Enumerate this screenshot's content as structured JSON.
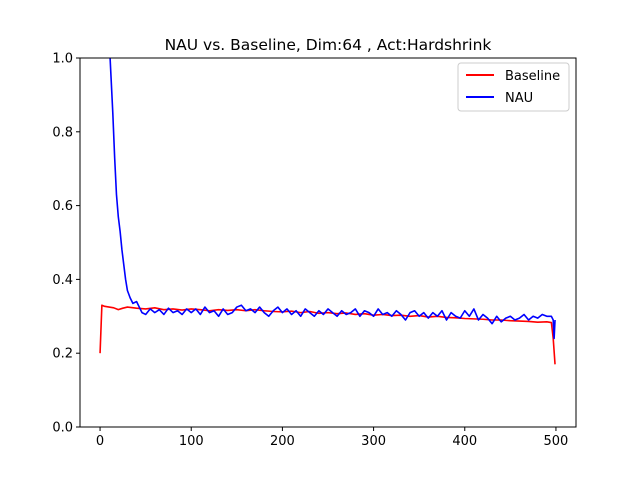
{
  "chart_data": {
    "type": "line",
    "title": "NAU vs. Baseline, Dim:64 , Act:Hardshrink",
    "xlabel": "",
    "ylabel": "",
    "xlim": [
      -22,
      522
    ],
    "ylim": [
      0,
      1.0
    ],
    "xticks": [
      0,
      100,
      200,
      300,
      400,
      500
    ],
    "yticks": [
      0.0,
      0.2,
      0.4,
      0.6,
      0.8,
      1.0
    ],
    "xtick_labels": [
      "0",
      "100",
      "200",
      "300",
      "400",
      "500"
    ],
    "ytick_labels": [
      "0.0",
      "0.2",
      "0.4",
      "0.6",
      "0.8",
      "1.0"
    ],
    "grid": false,
    "legend_position": "top-right",
    "series": [
      {
        "name": "Baseline",
        "color": "#ff0000",
        "x": [
          0,
          2,
          5,
          10,
          15,
          20,
          25,
          30,
          40,
          50,
          60,
          70,
          80,
          90,
          100,
          110,
          120,
          130,
          140,
          150,
          160,
          170,
          180,
          190,
          200,
          210,
          220,
          230,
          240,
          250,
          260,
          270,
          280,
          290,
          300,
          310,
          320,
          330,
          340,
          350,
          360,
          370,
          380,
          390,
          400,
          410,
          420,
          430,
          440,
          450,
          460,
          470,
          480,
          490,
          495,
          497,
          499
        ],
        "values": [
          0.2,
          0.33,
          0.327,
          0.325,
          0.323,
          0.318,
          0.322,
          0.325,
          0.322,
          0.32,
          0.323,
          0.318,
          0.32,
          0.317,
          0.32,
          0.318,
          0.315,
          0.318,
          0.316,
          0.318,
          0.315,
          0.318,
          0.315,
          0.313,
          0.312,
          0.314,
          0.31,
          0.313,
          0.308,
          0.31,
          0.307,
          0.309,
          0.305,
          0.307,
          0.303,
          0.305,
          0.302,
          0.303,
          0.3,
          0.302,
          0.298,
          0.3,
          0.297,
          0.296,
          0.294,
          0.293,
          0.292,
          0.29,
          0.29,
          0.288,
          0.287,
          0.286,
          0.284,
          0.285,
          0.283,
          0.24,
          0.17
        ]
      },
      {
        "name": "NAU",
        "color": "#0000ff",
        "x": [
          11,
          12,
          14,
          16,
          18,
          20,
          22,
          24,
          26,
          28,
          30,
          33,
          36,
          40,
          43,
          46,
          50,
          55,
          60,
          65,
          70,
          75,
          80,
          85,
          90,
          95,
          100,
          105,
          110,
          115,
          120,
          125,
          130,
          135,
          140,
          145,
          150,
          155,
          160,
          165,
          170,
          175,
          180,
          185,
          190,
          195,
          200,
          205,
          210,
          215,
          220,
          225,
          230,
          235,
          240,
          245,
          250,
          255,
          260,
          265,
          270,
          275,
          280,
          285,
          290,
          295,
          300,
          305,
          310,
          315,
          320,
          325,
          330,
          335,
          340,
          345,
          350,
          355,
          360,
          365,
          370,
          375,
          380,
          385,
          390,
          395,
          400,
          405,
          410,
          415,
          420,
          425,
          430,
          435,
          440,
          445,
          450,
          455,
          460,
          465,
          470,
          475,
          480,
          485,
          490,
          495,
          497,
          498,
          499
        ],
        "values": [
          1.0,
          0.95,
          0.85,
          0.73,
          0.63,
          0.57,
          0.53,
          0.48,
          0.44,
          0.4,
          0.37,
          0.35,
          0.335,
          0.34,
          0.325,
          0.31,
          0.305,
          0.32,
          0.31,
          0.318,
          0.305,
          0.322,
          0.31,
          0.315,
          0.305,
          0.32,
          0.31,
          0.32,
          0.305,
          0.325,
          0.31,
          0.315,
          0.3,
          0.32,
          0.305,
          0.31,
          0.325,
          0.33,
          0.315,
          0.32,
          0.31,
          0.325,
          0.31,
          0.3,
          0.315,
          0.325,
          0.31,
          0.32,
          0.305,
          0.315,
          0.3,
          0.32,
          0.31,
          0.3,
          0.315,
          0.305,
          0.32,
          0.31,
          0.3,
          0.315,
          0.305,
          0.31,
          0.32,
          0.3,
          0.315,
          0.31,
          0.3,
          0.32,
          0.305,
          0.31,
          0.3,
          0.315,
          0.305,
          0.29,
          0.31,
          0.315,
          0.3,
          0.31,
          0.295,
          0.31,
          0.3,
          0.315,
          0.29,
          0.31,
          0.3,
          0.295,
          0.315,
          0.3,
          0.32,
          0.29,
          0.305,
          0.295,
          0.28,
          0.3,
          0.285,
          0.295,
          0.3,
          0.29,
          0.295,
          0.305,
          0.29,
          0.3,
          0.295,
          0.305,
          0.3,
          0.3,
          0.29,
          0.24,
          0.29
        ]
      }
    ]
  }
}
